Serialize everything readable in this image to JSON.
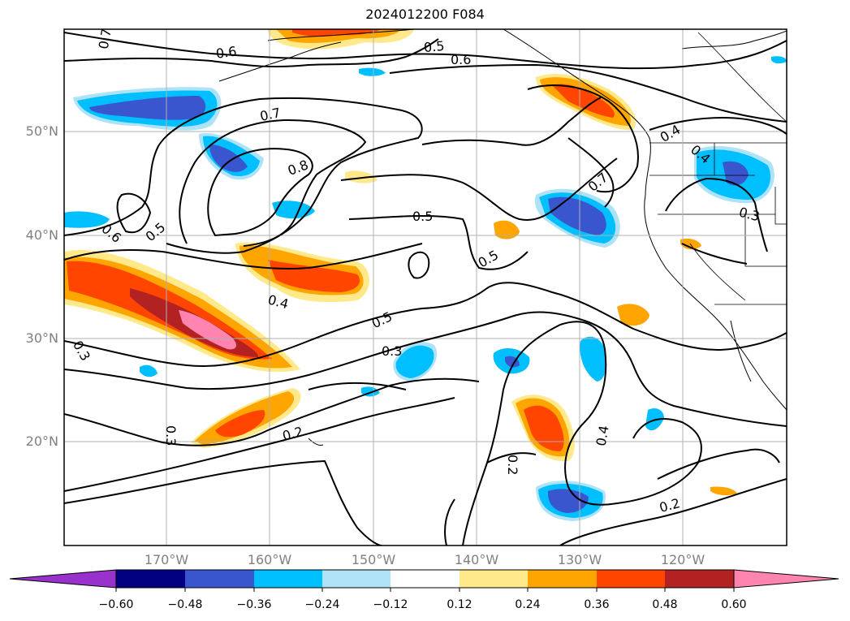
{
  "title": "2024012200 F084",
  "map": {
    "lat_labels": [
      "50°N",
      "40°N",
      "30°N",
      "20°N"
    ],
    "lon_labels": [
      "170°W",
      "160°W",
      "150°W",
      "140°W",
      "130°W",
      "120°W"
    ],
    "contour_labels": [
      "0.7",
      "0.6",
      "0.5",
      "0.6",
      "0.7",
      "0.8",
      "0.5",
      "0.6",
      "0.5",
      "0.5",
      "0.7",
      "0.4",
      "0.4",
      "0.4",
      "0.5",
      "0.3",
      "0.3",
      "0.3",
      "0.3",
      "0.2",
      "0.2",
      "0.4",
      "0.2"
    ],
    "fill_colors": {
      "neg_060": "#1a007f",
      "neg_048": "#3a56cf",
      "neg_036": "#00bfff",
      "neg_024": "#ade2f7",
      "pos_012": "#ffeb8a",
      "pos_024": "#ffa500",
      "pos_036": "#ff4500",
      "pos_048": "#b22222",
      "pos_060": "#ff85b0"
    }
  },
  "colorbar": {
    "ticks": [
      "−0.60",
      "−0.48",
      "−0.36",
      "−0.24",
      "−0.12",
      "0.12",
      "0.24",
      "0.36",
      "0.48",
      "0.60"
    ],
    "colors": [
      "#9932cc",
      "#000080",
      "#3a56cf",
      "#00bfff",
      "#ade2f7",
      "#ffffff",
      "#ffe98a",
      "#ffa500",
      "#ff4500",
      "#b22222",
      "#ff85b0"
    ]
  }
}
